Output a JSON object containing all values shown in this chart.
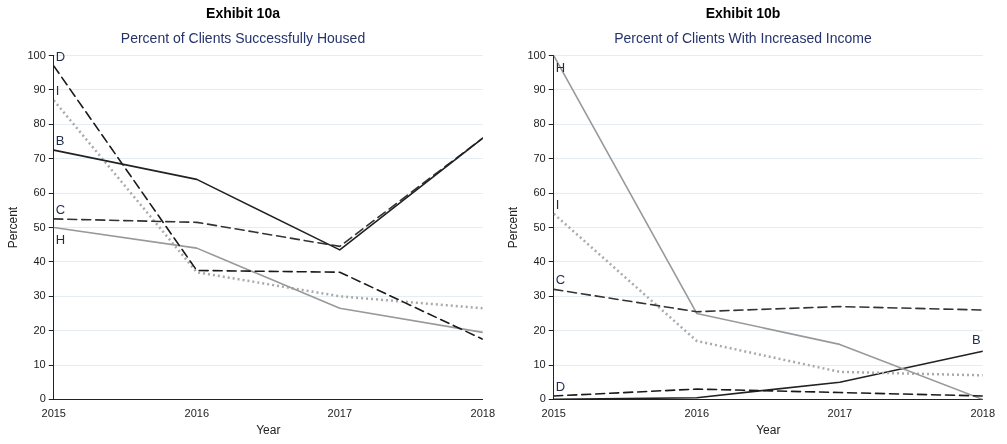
{
  "chart_data": [
    {
      "type": "line",
      "title": "Exhibit 10a",
      "subtitle": "Percent of Clients Successfully Housed",
      "xlabel": "Year",
      "ylabel": "Percent",
      "x": [
        2015,
        2016,
        2017,
        2018
      ],
      "xlim": [
        2015,
        2018
      ],
      "xticks": [
        2015,
        2016,
        2017,
        2018
      ],
      "ylim": [
        0,
        100
      ],
      "yticks": [
        0,
        10,
        20,
        30,
        40,
        50,
        60,
        70,
        80,
        90,
        100
      ],
      "grid": "y",
      "legend": false,
      "marker": "none",
      "series": [
        {
          "name": "B",
          "color": "#222222",
          "line_style": "solid",
          "values": [
            72.5,
            64,
            43.5,
            76
          ]
        },
        {
          "name": "C",
          "color": "#333333",
          "line_style": "dashed",
          "values": [
            52.5,
            51.5,
            44.5,
            76
          ]
        },
        {
          "name": "D",
          "color": "#1a1a1a",
          "line_style": "dashed",
          "values": [
            97,
            37.5,
            37,
            17.5
          ]
        },
        {
          "name": "H",
          "color": "#999999",
          "line_style": "solid",
          "values": [
            50,
            44,
            26.5,
            19.5
          ]
        },
        {
          "name": "I",
          "color": "#aaaaaa",
          "line_style": "dotted",
          "values": [
            87,
            37,
            30,
            26.5
          ]
        }
      ]
    },
    {
      "type": "line",
      "title": "Exhibit 10b",
      "subtitle": "Percent of Clients With Increased Income",
      "xlabel": "Year",
      "ylabel": "Percent",
      "x": [
        2015,
        2016,
        2017,
        2018
      ],
      "xlim": [
        2015,
        2018
      ],
      "xticks": [
        2015,
        2016,
        2017,
        2018
      ],
      "ylim": [
        0,
        100
      ],
      "yticks": [
        0,
        10,
        20,
        30,
        40,
        50,
        60,
        70,
        80,
        90,
        100
      ],
      "grid": "y",
      "legend": false,
      "marker": "none",
      "series": [
        {
          "name": "D",
          "color": "#1a1a1a",
          "line_style": "dashed",
          "values": [
            1,
            3,
            2,
            1
          ]
        },
        {
          "name": "C",
          "color": "#333333",
          "line_style": "dashed",
          "values": [
            32,
            25.5,
            27,
            26
          ]
        },
        {
          "name": "H",
          "color": "#999999",
          "line_style": "solid",
          "values": [
            100,
            25,
            16,
            0
          ]
        },
        {
          "name": "I",
          "color": "#aaaaaa",
          "line_style": "dotted",
          "values": [
            54,
            17,
            8,
            7
          ]
        },
        {
          "name": "B",
          "color": "#222222",
          "line_style": "solid",
          "values": [
            0,
            0.5,
            5,
            14
          ]
        }
      ]
    }
  ]
}
